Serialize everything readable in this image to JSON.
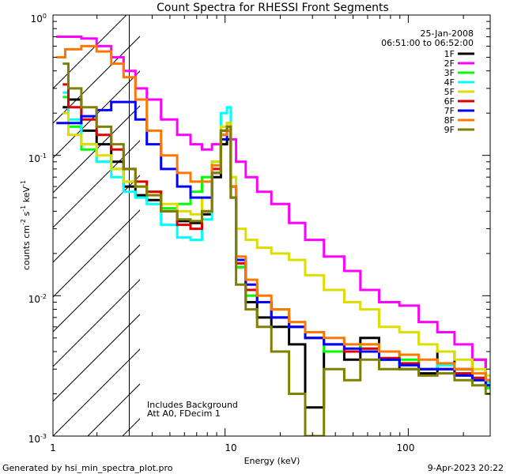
{
  "chart_data": {
    "type": "line",
    "title": "Count Spectra for RHESSI Front Segments",
    "xlabel": "Energy (keV)",
    "ylabel": {
      "base": "counts cm",
      "exp1": "-2",
      "mid": " s",
      "exp2": "-1",
      "tail": " keV",
      "exp3": "-1"
    },
    "x_scale": "log",
    "y_scale": "log",
    "xlim": [
      1.15,
      280
    ],
    "ylim": [
      0.001,
      1.0
    ],
    "x_ticks": [
      {
        "value": 1,
        "label": "1"
      },
      {
        "value": 10,
        "label": "10"
      },
      {
        "value": 100,
        "label": "100"
      }
    ],
    "y_ticks": [
      {
        "value": 1,
        "base": "10",
        "exp": "0"
      },
      {
        "value": 0.1,
        "base": "10",
        "exp": "-1"
      },
      {
        "value": 0.01,
        "base": "10",
        "exp": "-2"
      },
      {
        "value": 0.001,
        "base": "10",
        "exp": "-3"
      }
    ],
    "attenuator_limit_keV": 3.0,
    "date_label": "25-Jan-2008",
    "time_range_label": "06:51:00 to 06:52:00",
    "annotations": [
      "Includes Background",
      "Att A0, FDecim 1"
    ],
    "series": [
      {
        "name": "1F",
        "color": "#000000",
        "x": [
          1.3,
          1.5,
          1.8,
          2.2,
          2.6,
          3.0,
          3.5,
          4,
          5,
          6,
          7,
          8,
          9,
          10,
          10.5,
          11,
          12,
          14,
          16,
          20,
          25,
          30,
          40,
          50,
          60,
          80,
          100,
          130,
          160,
          200,
          250,
          280
        ],
        "values": [
          0.22,
          0.25,
          0.15,
          0.12,
          0.09,
          0.06,
          0.052,
          0.048,
          0.04,
          0.034,
          0.033,
          0.038,
          0.07,
          0.12,
          0.13,
          0.05,
          0.016,
          0.009,
          0.007,
          0.006,
          0.0045,
          0.0016,
          0.004,
          0.0035,
          0.005,
          0.0035,
          0.003,
          0.0028,
          0.004,
          0.003,
          0.0035,
          0.0025
        ]
      },
      {
        "name": "2F",
        "color": "#ff00ff",
        "x": [
          1.2,
          1.5,
          1.8,
          2.2,
          2.6,
          3.0,
          3.5,
          4,
          5,
          6,
          7,
          8,
          9,
          10,
          10.5,
          11,
          12,
          14,
          16,
          20,
          25,
          30,
          40,
          50,
          60,
          80,
          100,
          130,
          160,
          200,
          250,
          280
        ],
        "values": [
          0.7,
          0.7,
          0.68,
          0.6,
          0.5,
          0.4,
          0.3,
          0.25,
          0.18,
          0.14,
          0.12,
          0.11,
          0.12,
          0.14,
          0.17,
          0.13,
          0.09,
          0.07,
          0.055,
          0.045,
          0.033,
          0.025,
          0.019,
          0.015,
          0.011,
          0.009,
          0.0085,
          0.0065,
          0.0055,
          0.0045,
          0.0035,
          0.0025
        ]
      },
      {
        "name": "3F",
        "color": "#00ff00",
        "x": [
          1.3,
          1.5,
          1.8,
          2.2,
          2.6,
          3.0,
          3.5,
          4,
          5,
          6,
          7,
          8,
          9,
          10,
          10.5,
          11,
          12,
          14,
          16,
          20,
          25,
          30,
          40,
          50,
          60,
          80,
          100,
          130,
          160,
          200,
          250,
          280
        ],
        "values": [
          0.26,
          0.16,
          0.11,
          0.09,
          0.08,
          0.065,
          0.06,
          0.055,
          0.042,
          0.045,
          0.055,
          0.07,
          0.09,
          0.15,
          0.16,
          0.06,
          0.016,
          0.01,
          0.009,
          0.008,
          0.006,
          0.005,
          0.004,
          0.004,
          0.0045,
          0.004,
          0.0035,
          0.003,
          0.003,
          0.0028,
          0.0025,
          0.0022
        ]
      },
      {
        "name": "4F",
        "color": "#00ffff",
        "x": [
          1.3,
          1.5,
          1.8,
          2.2,
          2.6,
          3.0,
          3.5,
          4,
          5,
          6,
          7,
          8,
          9,
          10,
          10.5,
          11,
          12,
          14,
          16,
          20,
          25,
          30,
          40,
          50,
          60,
          80,
          100,
          130,
          160,
          200,
          250,
          280
        ],
        "values": [
          0.28,
          0.18,
          0.12,
          0.09,
          0.07,
          0.055,
          0.05,
          0.045,
          0.032,
          0.026,
          0.025,
          0.035,
          0.09,
          0.2,
          0.22,
          0.07,
          0.018,
          0.011,
          0.009,
          0.007,
          0.006,
          0.005,
          0.0045,
          0.004,
          0.0042,
          0.0035,
          0.0032,
          0.003,
          0.0032,
          0.0028,
          0.0026,
          0.0024
        ]
      },
      {
        "name": "5F",
        "color": "#dddd00",
        "x": [
          1.3,
          1.5,
          1.8,
          2.2,
          2.6,
          3.0,
          3.5,
          4,
          5,
          6,
          7,
          8,
          9,
          10,
          10.5,
          11,
          12,
          14,
          16,
          20,
          25,
          30,
          40,
          50,
          60,
          80,
          100,
          130,
          160,
          200,
          250,
          280
        ],
        "values": [
          0.2,
          0.14,
          0.12,
          0.1,
          0.08,
          0.065,
          0.06,
          0.055,
          0.045,
          0.04,
          0.038,
          0.05,
          0.09,
          0.16,
          0.17,
          0.07,
          0.03,
          0.025,
          0.022,
          0.02,
          0.018,
          0.014,
          0.011,
          0.009,
          0.008,
          0.006,
          0.0055,
          0.0045,
          0.004,
          0.0035,
          0.003,
          0.0027
        ]
      },
      {
        "name": "6F",
        "color": "#dd0000",
        "x": [
          1.3,
          1.5,
          1.8,
          2.2,
          2.6,
          3.0,
          3.5,
          4,
          5,
          6,
          7,
          8,
          9,
          10,
          10.5,
          11,
          12,
          14,
          16,
          20,
          25,
          30,
          40,
          50,
          60,
          80,
          100,
          130,
          160,
          200,
          250,
          280
        ],
        "values": [
          0.32,
          0.22,
          0.18,
          0.14,
          0.11,
          0.08,
          0.065,
          0.055,
          0.04,
          0.032,
          0.03,
          0.04,
          0.08,
          0.15,
          0.16,
          0.06,
          0.017,
          0.011,
          0.009,
          0.007,
          0.006,
          0.005,
          0.0045,
          0.004,
          0.0042,
          0.0036,
          0.0033,
          0.003,
          0.003,
          0.0028,
          0.0026,
          0.0023
        ]
      },
      {
        "name": "7F",
        "color": "#0000ff",
        "x": [
          1.2,
          1.5,
          1.8,
          2.2,
          2.6,
          3.0,
          3.5,
          4,
          5,
          6,
          7,
          8,
          9,
          10,
          10.5,
          11,
          12,
          14,
          16,
          20,
          25,
          30,
          40,
          50,
          60,
          80,
          100,
          130,
          160,
          200,
          250,
          280
        ],
        "values": [
          0.17,
          0.17,
          0.19,
          0.21,
          0.24,
          0.24,
          0.18,
          0.12,
          0.08,
          0.06,
          0.05,
          0.05,
          0.075,
          0.13,
          0.15,
          0.06,
          0.018,
          0.012,
          0.009,
          0.007,
          0.006,
          0.005,
          0.0045,
          0.0042,
          0.004,
          0.0035,
          0.0032,
          0.003,
          0.003,
          0.0027,
          0.0025,
          0.0023
        ]
      },
      {
        "name": "8F",
        "color": "#ff7700",
        "x": [
          1.2,
          1.5,
          1.8,
          2.2,
          2.6,
          3.0,
          3.5,
          4,
          5,
          6,
          7,
          8,
          9,
          10,
          10.5,
          11,
          12,
          14,
          16,
          20,
          25,
          30,
          40,
          50,
          60,
          80,
          100,
          130,
          160,
          200,
          250,
          280
        ],
        "values": [
          0.5,
          0.57,
          0.6,
          0.55,
          0.45,
          0.36,
          0.25,
          0.15,
          0.1,
          0.075,
          0.065,
          0.065,
          0.085,
          0.14,
          0.15,
          0.06,
          0.019,
          0.013,
          0.01,
          0.008,
          0.0065,
          0.0055,
          0.005,
          0.0045,
          0.0045,
          0.004,
          0.0038,
          0.0035,
          0.0033,
          0.003,
          0.0028,
          0.0025
        ]
      },
      {
        "name": "9F",
        "color": "#808000",
        "x": [
          1.3,
          1.5,
          1.8,
          2.2,
          2.6,
          3.0,
          3.5,
          4,
          5,
          6,
          7,
          8,
          9,
          10,
          10.5,
          11,
          12,
          14,
          16,
          20,
          25,
          30,
          40,
          50,
          60,
          80,
          100,
          130,
          160,
          200,
          250,
          280
        ],
        "values": [
          0.45,
          0.3,
          0.22,
          0.16,
          0.12,
          0.08,
          0.06,
          0.052,
          0.04,
          0.035,
          0.034,
          0.04,
          0.075,
          0.15,
          0.16,
          0.05,
          0.012,
          0.008,
          0.006,
          0.004,
          0.002,
          0.001,
          0.003,
          0.0025,
          0.0035,
          0.003,
          0.003,
          0.0027,
          0.0028,
          0.0025,
          0.0023,
          0.002
        ]
      }
    ]
  },
  "footer": {
    "generated_by": "Generated by hsi_min_spectra_plot.pro",
    "generated_at": "9-Apr-2023 20:22"
  }
}
